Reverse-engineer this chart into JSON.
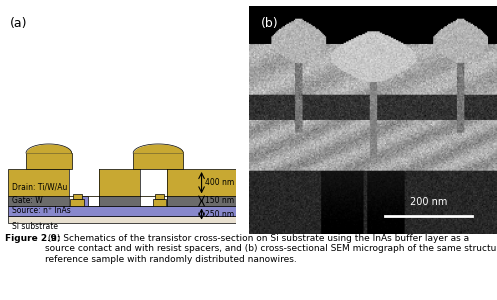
{
  "fig_width": 4.97,
  "fig_height": 3.0,
  "dpi": 100,
  "bg_color": "#ffffff",
  "gold_color": "#C8A832",
  "gate_color": "#6B6B6B",
  "blue_color": "#8888CC",
  "white_color": "#FFFFFF",
  "label_a": "(a)",
  "label_b": "(b)",
  "label_drain": "Drain: Ti/W/Au",
  "label_gate": "Gate: W",
  "label_source": "Source: n⁺ InAs",
  "label_substrate": "Si substrate",
  "dim_400": "400 nm",
  "dim_150": "150 nm",
  "dim_250": "250 nm",
  "dim_200nm": "200 nm",
  "caption": "Figure 2.9: (a) Schematics of the transistor cross-section on Si substrate using the InAs buffer layer as a\nsource contact and with resist spacers, and (b) cross-sectional SEM micrograph of the same structure on a\nreference sample with randomly distributed nanowires.",
  "caption_bold": "Figure 2.9:",
  "caption_normal": " (a) Schematics of the transistor cross-section on Si substrate using the InAs buffer layer as a\nsource contact and with resist spacers, and (b) cross-sectional SEM micrograph of the same structure on a\nreference sample with randomly distributed nanowires."
}
